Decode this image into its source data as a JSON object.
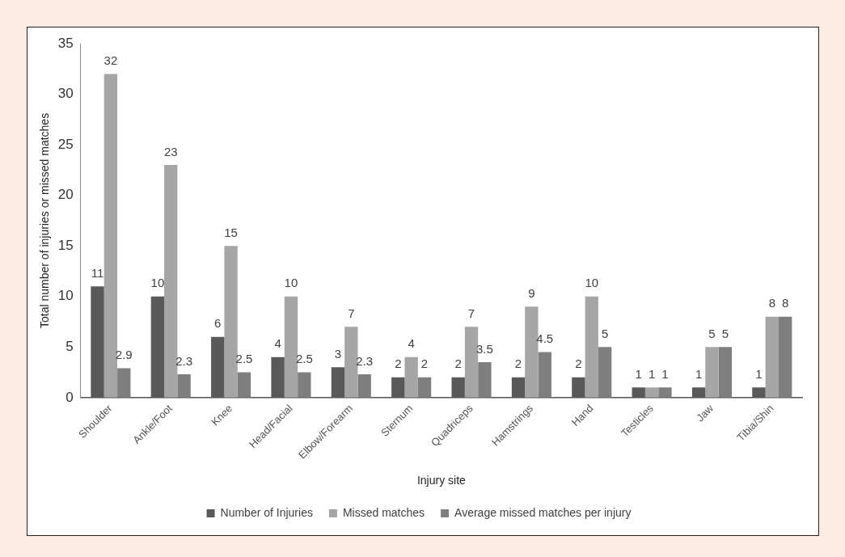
{
  "chart_data": {
    "type": "bar",
    "xlabel": "Injury site",
    "ylabel": "Total number of injuries or missed matches",
    "categories": [
      "Shoulder",
      "Ankle/Foot",
      "Knee",
      "Head/Facial",
      "Elbow/Forearm",
      "Sternum",
      "Quadriceps",
      "Hamstrings",
      "Hand",
      "Testicles",
      "Jaw",
      "Tibia/Shin"
    ],
    "series": [
      {
        "name": "Number of Injuries",
        "color": "#595959",
        "values": [
          11,
          10,
          6,
          4,
          3,
          2,
          2,
          2,
          2,
          1,
          1,
          1
        ]
      },
      {
        "name": "Missed matches",
        "color": "#a6a6a6",
        "values": [
          32,
          23,
          15,
          10,
          7,
          4,
          7,
          9,
          10,
          1,
          5,
          8
        ]
      },
      {
        "name": "Average missed matches per injury",
        "color": "#7f7f7f",
        "values": [
          2.9,
          2.3,
          2.5,
          2.5,
          2.3,
          2,
          3.5,
          4.5,
          5,
          1,
          5,
          8
        ]
      }
    ],
    "ylim": [
      0,
      35
    ],
    "yticks": [
      0,
      5,
      10,
      15,
      20,
      25,
      30,
      35
    ],
    "grid": false,
    "legend": "bottom",
    "data_labels": true
  }
}
